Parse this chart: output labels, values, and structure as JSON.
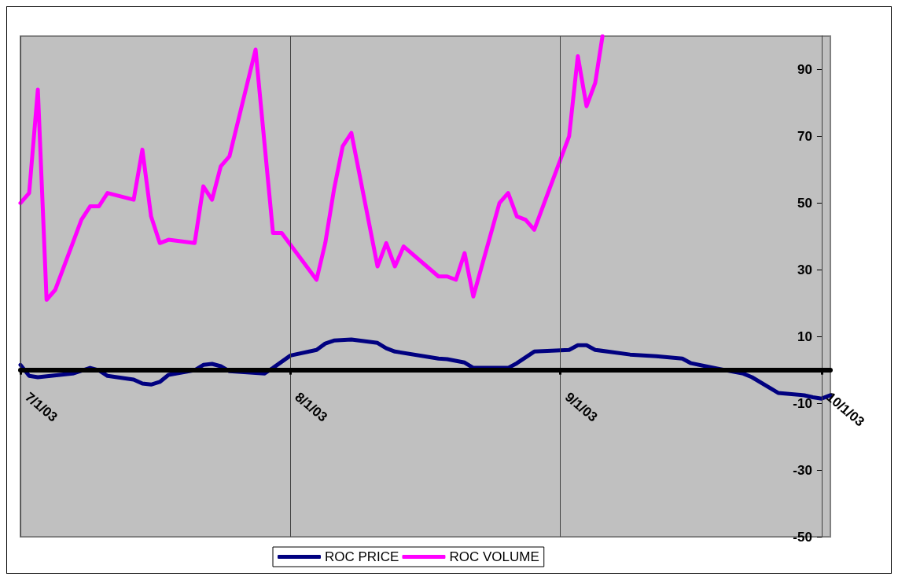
{
  "chart_data": {
    "type": "line",
    "xlim": [
      "2003-07-01",
      "2003-10-02"
    ],
    "xticks": [
      {
        "value": "2003-07-01",
        "label": "7/1/03"
      },
      {
        "value": "2003-08-01",
        "label": "8/1/03"
      },
      {
        "value": "2003-09-01",
        "label": "9/1/03"
      },
      {
        "value": "2003-10-01",
        "label": "10/1/03"
      }
    ],
    "ylim": [
      -50,
      100
    ],
    "yticks": [
      -50,
      -30,
      -10,
      10,
      30,
      50,
      70,
      90
    ],
    "grid": "x",
    "legend": "bottom",
    "marker": "none",
    "line_style": "solid",
    "series": [
      {
        "name": "ROC PRICE",
        "color": "#000080",
        "x": [
          "2003-07-01",
          "2003-07-02",
          "2003-07-03",
          "2003-07-07",
          "2003-07-09",
          "2003-07-10",
          "2003-07-11",
          "2003-07-14",
          "2003-07-15",
          "2003-07-16",
          "2003-07-17",
          "2003-07-18",
          "2003-07-21",
          "2003-07-22",
          "2003-07-23",
          "2003-07-24",
          "2003-07-25",
          "2003-07-29",
          "2003-07-30",
          "2003-08-01",
          "2003-08-04",
          "2003-08-05",
          "2003-08-06",
          "2003-08-08",
          "2003-08-11",
          "2003-08-12",
          "2003-08-13",
          "2003-08-18",
          "2003-08-19",
          "2003-08-21",
          "2003-08-22",
          "2003-08-26",
          "2003-08-27",
          "2003-08-29",
          "2003-09-02",
          "2003-09-03",
          "2003-09-04",
          "2003-09-05",
          "2003-09-09",
          "2003-09-12",
          "2003-09-15",
          "2003-09-16",
          "2003-09-19",
          "2003-09-22",
          "2003-09-23",
          "2003-09-26",
          "2003-09-29",
          "2003-09-30",
          "2003-10-01",
          "2003-10-02"
        ],
        "values": [
          1.5,
          -1.8,
          -2.2,
          -1.1,
          0.6,
          -0.1,
          -1.8,
          -2.9,
          -4.1,
          -4.4,
          -3.6,
          -1.5,
          -0.1,
          1.5,
          1.8,
          1.1,
          -0.4,
          -1.1,
          0.6,
          4.3,
          6.0,
          7.9,
          8.8,
          9.1,
          8.1,
          6.5,
          5.5,
          3.4,
          3.2,
          2.2,
          0.6,
          0.6,
          2.0,
          5.5,
          6.0,
          7.4,
          7.4,
          6.0,
          4.6,
          4.1,
          3.4,
          2.0,
          0.4,
          -1.1,
          -2.2,
          -6.9,
          -7.6,
          -8.2,
          -8.6,
          -7.6
        ]
      },
      {
        "name": "ROC VOLUME",
        "color": "#ff00ff",
        "x": [
          "2003-07-01",
          "2003-07-02",
          "2003-07-03",
          "2003-07-04",
          "2003-07-05",
          "2003-07-07",
          "2003-07-08",
          "2003-07-09",
          "2003-07-10",
          "2003-07-11",
          "2003-07-14",
          "2003-07-15",
          "2003-07-16",
          "2003-07-17",
          "2003-07-18",
          "2003-07-21",
          "2003-07-22",
          "2003-07-23",
          "2003-07-24",
          "2003-07-25",
          "2003-07-28",
          "2003-07-30",
          "2003-07-31",
          "2003-08-04",
          "2003-08-05",
          "2003-08-06",
          "2003-08-07",
          "2003-08-08",
          "2003-08-11",
          "2003-08-12",
          "2003-08-13",
          "2003-08-14",
          "2003-08-18",
          "2003-08-19",
          "2003-08-20",
          "2003-08-21",
          "2003-08-22",
          "2003-08-25",
          "2003-08-26",
          "2003-08-27",
          "2003-08-28",
          "2003-08-29",
          "2003-09-02",
          "2003-09-03",
          "2003-09-04",
          "2003-09-05",
          "2003-09-05T20:00"
        ],
        "values": [
          50,
          53,
          84,
          21,
          24,
          38,
          45,
          49,
          49,
          53,
          51,
          66,
          46,
          38,
          39,
          38,
          55,
          51,
          61,
          64,
          96,
          41,
          41,
          27,
          38,
          54,
          67,
          71,
          31,
          38,
          31,
          37,
          28,
          28,
          27,
          35,
          22,
          50,
          53,
          46,
          45,
          42,
          70,
          94,
          79,
          86,
          100
        ]
      }
    ]
  }
}
